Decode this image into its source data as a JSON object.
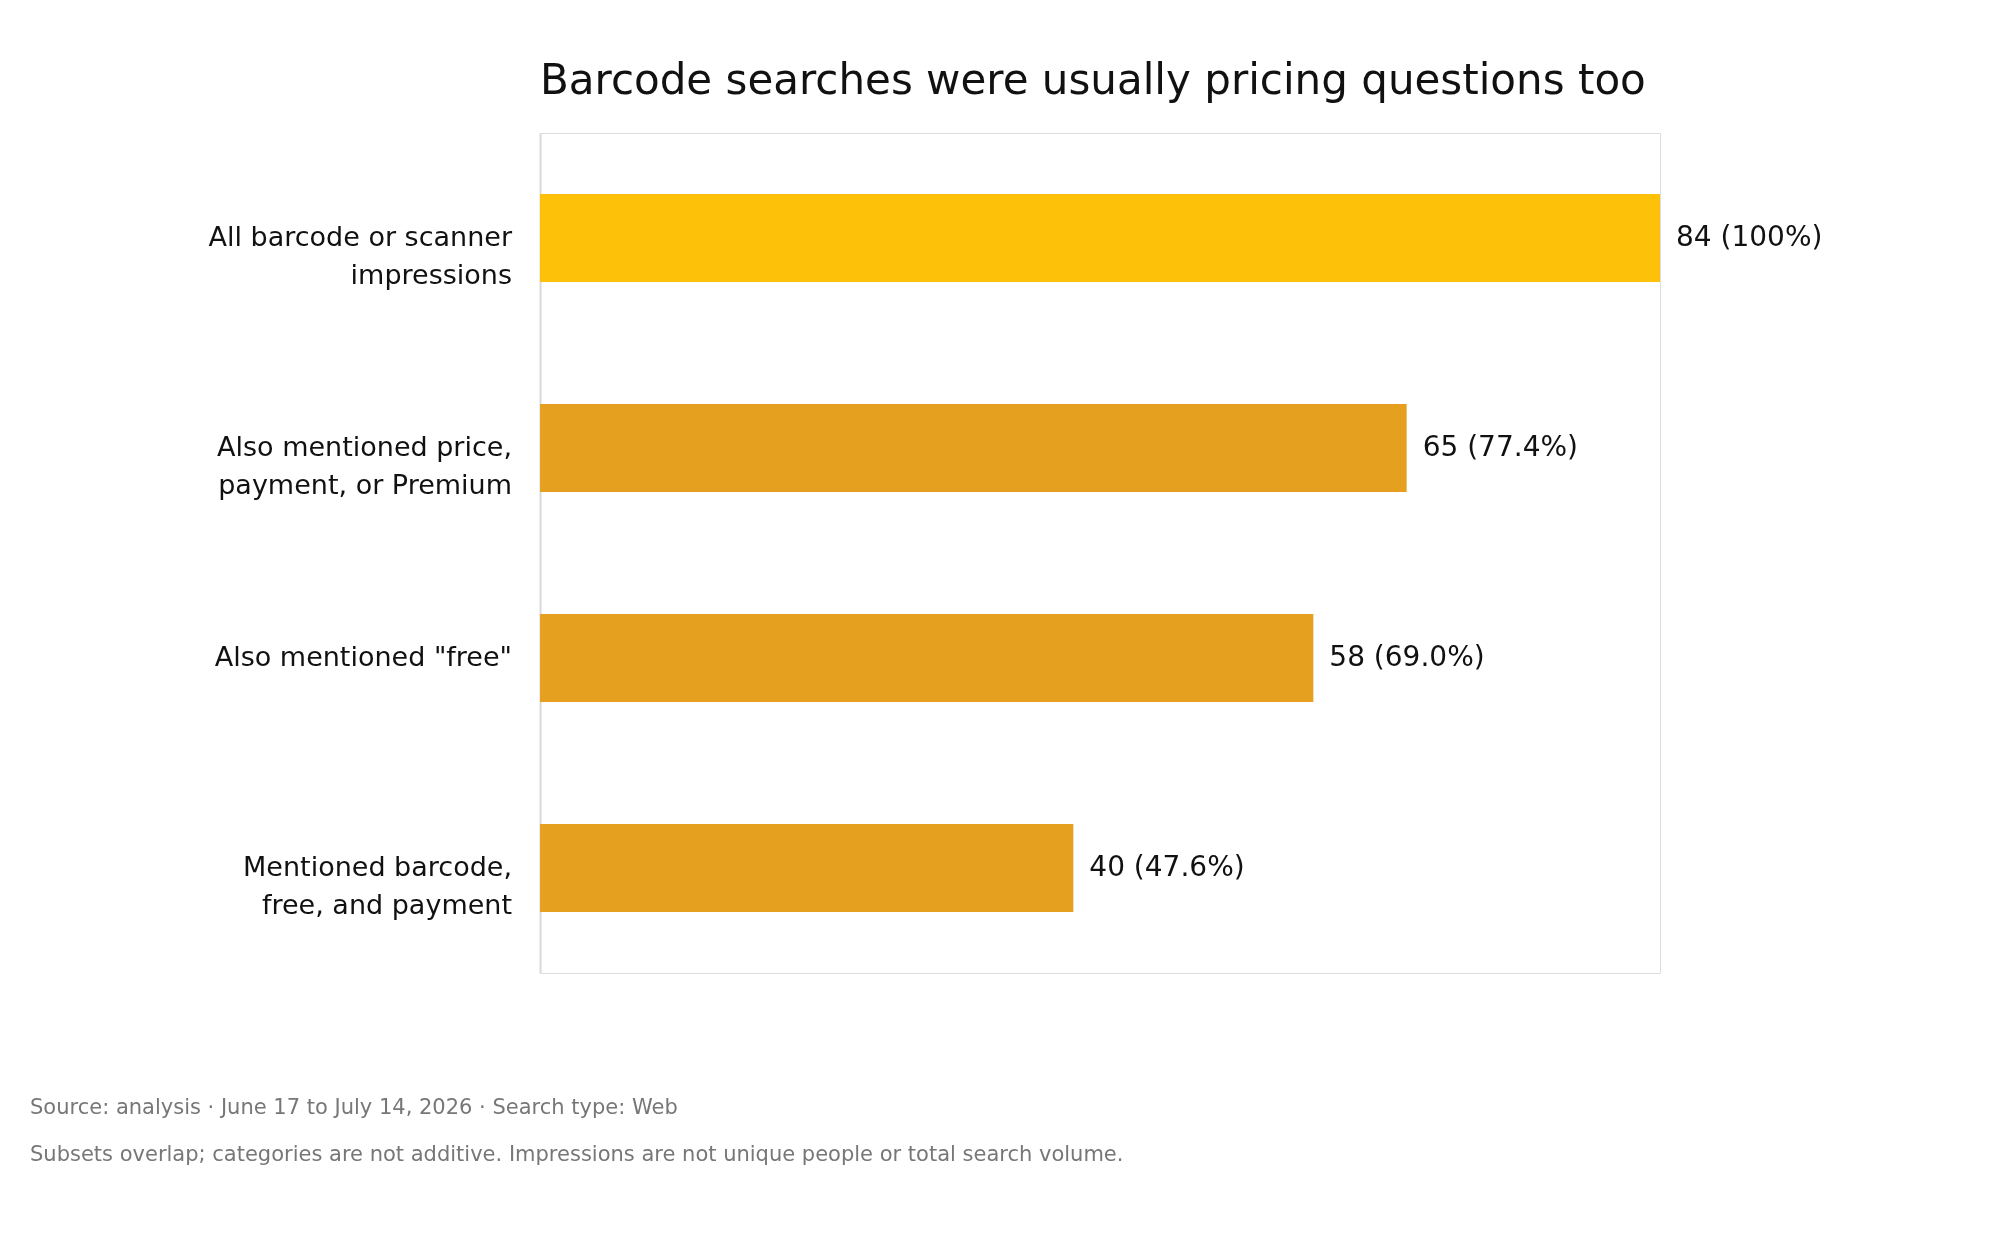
{
  "chart_data": {
    "type": "bar",
    "orientation": "horizontal",
    "title": "Barcode searches were usually pricing questions too",
    "categories": [
      "All barcode or scanner impressions",
      "Also mentioned price, payment, or Premium",
      "Also mentioned \"free\"",
      "Mentioned barcode, free, and payment"
    ],
    "values": [
      84,
      65,
      58,
      40
    ],
    "colors": [
      "#fdc10a",
      "#e6a020",
      "#e6a020",
      "#e6a020"
    ],
    "value_labels": [
      "84 (100%)",
      "65 (77.4%)",
      "58 (69.0%)",
      "40 (47.6%)"
    ],
    "annotations": [
      "Source: analysis · June 17 to July 14, 2026 · Search type: Web",
      "Subsets overlap; categories are not additive. Impressions are not unique people or total search volume."
    ],
    "grid": false
  }
}
